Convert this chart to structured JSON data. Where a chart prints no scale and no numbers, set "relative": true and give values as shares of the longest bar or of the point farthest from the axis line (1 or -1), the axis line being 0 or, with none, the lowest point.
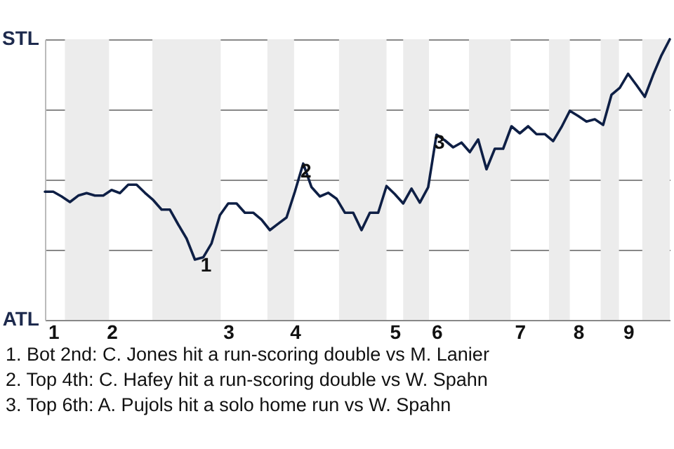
{
  "chart_data": {
    "type": "line",
    "relative": true,
    "categories": [
      null,
      "1",
      null,
      null,
      null,
      null,
      null,
      null,
      "2",
      null,
      null,
      null,
      null,
      null,
      null,
      null,
      null,
      null,
      null,
      null,
      null,
      null,
      "3",
      null,
      null,
      null,
      null,
      null,
      null,
      null,
      "4",
      null,
      null,
      null,
      null,
      null,
      null,
      null,
      null,
      null,
      null,
      null,
      "5",
      null,
      null,
      null,
      null,
      "6",
      null,
      null,
      null,
      null,
      null,
      null,
      null,
      null,
      null,
      "7",
      null,
      null,
      null,
      null,
      null,
      null,
      "8",
      null,
      null,
      null,
      null,
      null,
      "9",
      null,
      null,
      null,
      null,
      null
    ],
    "series": [
      {
        "color": "#0e1f45",
        "values": [
          0.457,
          0.457,
          0.44,
          0.42,
          0.443,
          0.452,
          0.443,
          0.443,
          0.463,
          0.452,
          0.482,
          0.482,
          0.453,
          0.427,
          0.393,
          0.393,
          0.34,
          0.29,
          0.215,
          0.223,
          0.273,
          0.373,
          0.415,
          0.415,
          0.382,
          0.382,
          0.357,
          0.32,
          0.343,
          0.365,
          0.457,
          0.557,
          0.473,
          0.44,
          0.453,
          0.432,
          0.382,
          0.382,
          0.32,
          0.382,
          0.382,
          0.477,
          0.448,
          0.415,
          0.468,
          0.418,
          0.473,
          0.66,
          0.64,
          0.615,
          0.632,
          0.598,
          0.643,
          0.537,
          0.61,
          0.61,
          0.69,
          0.665,
          0.69,
          0.662,
          0.662,
          0.637,
          0.687,
          0.745,
          0.727,
          0.707,
          0.715,
          0.695,
          0.802,
          0.827,
          0.877,
          0.837,
          0.795,
          0.873,
          0.943,
          1
        ]
      }
    ],
    "grid": "y",
    "annotations": [
      "STL",
      "ATL",
      {
        "text": "1",
        "y": 0.223
      },
      {
        "text": "2",
        "y": 0.557
      },
      {
        "text": "3",
        "y": 0.66
      },
      "1. Bot 2nd: C. Jones hit a run-scoring double vs M. Lanier",
      "2. Top 4th: C. Hafey hit a run-scoring double vs W. Spahn",
      "3. Top 6th: A. Pujols hit a solo home run vs W. Spahn"
    ]
  }
}
